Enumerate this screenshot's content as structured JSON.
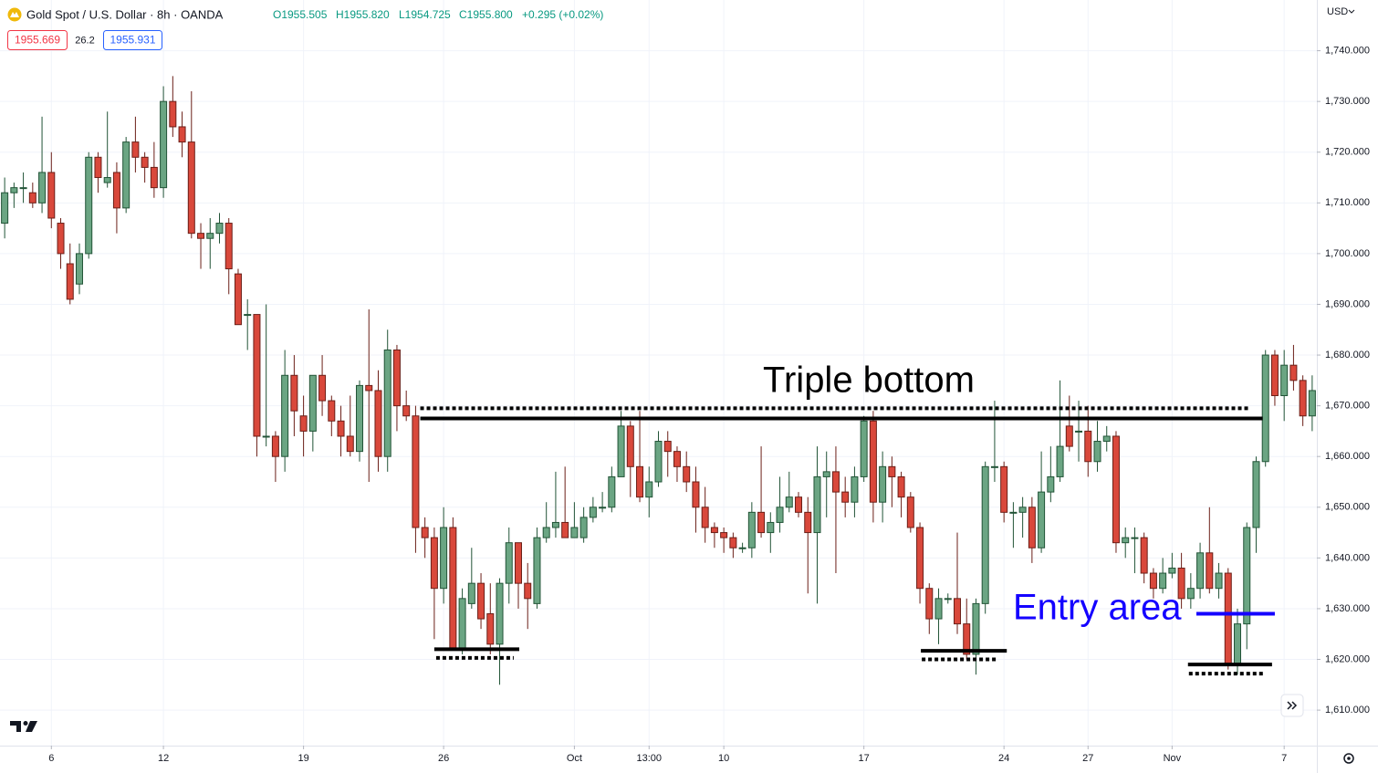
{
  "chart_data": {
    "type": "candlestick",
    "title": "Gold Spot / U.S. Dollar · 8h · OANDA",
    "ohlc_labels": [
      "O1955.505",
      "H1955.820",
      "L1954.725",
      "C1955.800",
      "+0.295 (+0.02%)"
    ],
    "price_boxes": [
      "1955.669",
      "26.2",
      "1955.931"
    ],
    "currency": "USD",
    "up_color": "#6ba583",
    "down_color": "#d9483b",
    "open": [
      1706,
      1712,
      1713,
      1712,
      1710,
      1716,
      1706,
      1698,
      1694,
      1700,
      1719,
      1714,
      1716,
      1709,
      1722,
      1719,
      1717,
      1713,
      1730,
      1725,
      1722,
      1704,
      1703,
      1704,
      1706,
      1696,
      1688,
      1688,
      1664,
      1664,
      1660,
      1676,
      1668,
      1665,
      1676,
      1671,
      1667,
      1664,
      1661,
      1674,
      1673,
      1660,
      1681,
      1670,
      1668,
      1646,
      1644,
      1634,
      1646,
      1622,
      1631,
      1635,
      1629,
      1623,
      1635,
      1643,
      1635,
      1631,
      1644,
      1646,
      1647,
      1644,
      1644,
      1648,
      1650,
      1650,
      1656,
      1666,
      1658,
      1652,
      1655,
      1663,
      1661,
      1658,
      1655,
      1650,
      1646,
      1645,
      1644,
      1642,
      1642,
      1649,
      1645,
      1647,
      1650,
      1652,
      1649,
      1645,
      1656,
      1657,
      1653,
      1651,
      1656,
      1667,
      1651,
      1658,
      1656,
      1652,
      1646,
      1634,
      1628,
      1632,
      1632,
      1627,
      1621,
      1631,
      1658,
      1658,
      1649,
      1649,
      1650,
      1642,
      1653,
      1656,
      1666,
      1665,
      1665,
      1659,
      1663,
      1664,
      1643,
      1644,
      1644,
      1637,
      1634,
      1637,
      1638,
      1632,
      1634,
      1641,
      1634,
      1637,
      1619,
      1627,
      1646,
      1659,
      1680,
      1672,
      1678,
      1675,
      1668
    ],
    "high": [
      1715,
      1714,
      1716,
      1714,
      1727,
      1720,
      1707,
      1702,
      1702,
      1720,
      1720,
      1728,
      1718,
      1723,
      1727,
      1720,
      1722,
      1733,
      1735,
      1728,
      1732,
      1706,
      1707,
      1708,
      1707,
      1697,
      1691,
      1688,
      1690,
      1665,
      1681,
      1680,
      1672,
      1676,
      1680,
      1672,
      1670,
      1672,
      1675,
      1689,
      1677,
      1685,
      1682,
      1673,
      1670,
      1648,
      1646,
      1650,
      1648,
      1634,
      1642,
      1637,
      1635,
      1636,
      1646,
      1643,
      1639,
      1646,
      1651,
      1657,
      1658,
      1651,
      1650,
      1652,
      1653,
      1658,
      1669,
      1667,
      1669,
      1658,
      1665,
      1665,
      1662,
      1661,
      1658,
      1654,
      1647,
      1646,
      1645,
      1643,
      1651,
      1662,
      1649,
      1656,
      1657,
      1653,
      1652,
      1662,
      1661,
      1662,
      1656,
      1658,
      1668,
      1669,
      1661,
      1660,
      1657,
      1653,
      1647,
      1635,
      1634,
      1633,
      1645,
      1632,
      1632,
      1659,
      1671,
      1659,
      1651,
      1652,
      1652,
      1661,
      1662,
      1675,
      1672,
      1671,
      1670,
      1667,
      1666,
      1665,
      1646,
      1646,
      1645,
      1638,
      1640,
      1641,
      1641,
      1637,
      1643,
      1650,
      1639,
      1638,
      1630,
      1647,
      1660,
      1681,
      1681,
      1681,
      1682,
      1676,
      1676
    ],
    "low": [
      1703,
      1709,
      1710,
      1709,
      1708,
      1705,
      1697,
      1690,
      1692,
      1699,
      1712,
      1713,
      1704,
      1708,
      1716,
      1714,
      1711,
      1711,
      1723,
      1719,
      1703,
      1697,
      1697,
      1702,
      1692,
      1686,
      1681,
      1660,
      1662,
      1655,
      1657,
      1664,
      1660,
      1661,
      1668,
      1664,
      1660,
      1660,
      1659,
      1655,
      1657,
      1657,
      1665,
      1667,
      1641,
      1640,
      1624,
      1631,
      1622,
      1621,
      1630,
      1626,
      1621,
      1615,
      1631,
      1630,
      1626,
      1630,
      1643,
      1644,
      1644,
      1645,
      1643,
      1647,
      1649,
      1649,
      1656,
      1652,
      1651,
      1648,
      1654,
      1656,
      1655,
      1653,
      1645,
      1643,
      1642,
      1641,
      1640,
      1641,
      1640,
      1644,
      1641,
      1645,
      1649,
      1648,
      1633,
      1631,
      1648,
      1637,
      1648,
      1648,
      1655,
      1647,
      1647,
      1650,
      1648,
      1645,
      1631,
      1625,
      1623,
      1631,
      1625,
      1620,
      1617,
      1629,
      1655,
      1647,
      1642,
      1644,
      1639,
      1641,
      1651,
      1655,
      1661,
      1659,
      1656,
      1657,
      1661,
      1641,
      1640,
      1637,
      1635,
      1632,
      1633,
      1636,
      1630,
      1630,
      1632,
      1633,
      1632,
      1618,
      1617,
      1622,
      1641,
      1658,
      1670,
      1667,
      1673,
      1666,
      1665
    ],
    "close": [
      1712,
      1713,
      1713,
      1710,
      1716,
      1707,
      1700,
      1691,
      1700,
      1719,
      1715,
      1715,
      1709,
      1722,
      1719,
      1717,
      1713,
      1730,
      1725,
      1722,
      1704,
      1703,
      1704,
      1706,
      1697,
      1686,
      1688,
      1664,
      1664,
      1660,
      1676,
      1669,
      1665,
      1676,
      1671,
      1667,
      1664,
      1661,
      1674,
      1673,
      1660,
      1681,
      1670,
      1668,
      1646,
      1644,
      1634,
      1646,
      1622,
      1632,
      1635,
      1628,
      1623,
      1635,
      1643,
      1635,
      1632,
      1644,
      1646,
      1647,
      1644,
      1646,
      1648,
      1650,
      1650,
      1656,
      1666,
      1658,
      1652,
      1655,
      1663,
      1661,
      1658,
      1655,
      1650,
      1646,
      1645,
      1644,
      1642,
      1642,
      1649,
      1645,
      1647,
      1650,
      1652,
      1649,
      1645,
      1656,
      1657,
      1653,
      1651,
      1656,
      1667,
      1651,
      1658,
      1656,
      1652,
      1646,
      1634,
      1628,
      1632,
      1632,
      1627,
      1621,
      1631,
      1658,
      1658,
      1649,
      1649,
      1650,
      1642,
      1653,
      1656,
      1662,
      1662,
      1665,
      1659,
      1663,
      1664,
      1643,
      1644,
      1644,
      1637,
      1634,
      1637,
      1638,
      1632,
      1634,
      1641,
      1634,
      1637,
      1619,
      1627,
      1646,
      1659,
      1680,
      1672,
      1678,
      1675,
      1668,
      1673
    ],
    "xlim": [
      -0.5,
      140.5
    ],
    "xticks": [
      {
        "value": 5,
        "label": "6"
      },
      {
        "value": 17,
        "label": "12"
      },
      {
        "value": 32,
        "label": "19"
      },
      {
        "value": 47,
        "label": "26"
      },
      {
        "value": 61,
        "label": "Oct"
      },
      {
        "value": 69,
        "label": "13:00"
      },
      {
        "value": 77,
        "label": "10"
      },
      {
        "value": 92,
        "label": "17"
      },
      {
        "value": 107,
        "label": "24"
      },
      {
        "value": 116,
        "label": "27"
      },
      {
        "value": 125,
        "label": "Nov"
      },
      {
        "value": 137,
        "label": "7"
      }
    ],
    "ylim": [
      1603,
      1750
    ],
    "yticks": [
      {
        "value": 1610,
        "label": "1,610.000"
      },
      {
        "value": 1620,
        "label": "1,620.000"
      },
      {
        "value": 1630,
        "label": "1,630.000"
      },
      {
        "value": 1640,
        "label": "1,640.000"
      },
      {
        "value": 1650,
        "label": "1,650.000"
      },
      {
        "value": 1660,
        "label": "1,660.000"
      },
      {
        "value": 1670,
        "label": "1,670.000"
      },
      {
        "value": 1680,
        "label": "1,680.000"
      },
      {
        "value": 1690,
        "label": "1,690.000"
      },
      {
        "value": 1700,
        "label": "1,700.000"
      },
      {
        "value": 1710,
        "label": "1,710.000"
      },
      {
        "value": 1720,
        "label": "1,720.000"
      },
      {
        "value": 1730,
        "label": "1,730.000"
      },
      {
        "value": 1740,
        "label": "1,740.000"
      }
    ],
    "grid": true,
    "drawings": [
      {
        "y": 1669.5,
        "from": 44.5,
        "to": 133.2,
        "style": "dotted",
        "color": "#000000"
      },
      {
        "y": 1667.5,
        "from": 44.5,
        "to": 134.7,
        "style": "solid",
        "color": "#000000"
      },
      {
        "y": 1622,
        "from": 46,
        "to": 55.1,
        "style": "solid",
        "color": "#000000"
      },
      {
        "y": 1620.3,
        "from": 46.2,
        "to": 54.5,
        "style": "dotted",
        "color": "#000000"
      },
      {
        "y": 1621.7,
        "from": 98.1,
        "to": 107.3,
        "style": "solid",
        "color": "#000000"
      },
      {
        "y": 1620,
        "from": 98.2,
        "to": 106.4,
        "style": "dotted",
        "color": "#000000"
      },
      {
        "y": 1619,
        "from": 126.7,
        "to": 135.7,
        "style": "solid",
        "color": "#000000"
      },
      {
        "y": 1617.2,
        "from": 126.8,
        "to": 134.9,
        "style": "dotted",
        "color": "#000000"
      },
      {
        "y": 1629,
        "from": 127.6,
        "to": 136,
        "style": "solid",
        "color": "#1400ff"
      }
    ],
    "annotations": [
      {
        "text": "Triple bottom",
        "color": "#000000"
      },
      {
        "text": "Entry area",
        "color": "#1400ff"
      }
    ]
  }
}
